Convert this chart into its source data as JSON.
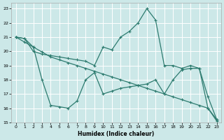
{
  "xlabel": "Humidex (Indice chaleur)",
  "bg_color": "#cce8e8",
  "grid_color": "#ffffff",
  "line_color": "#2d7b6f",
  "xlim": [
    -0.5,
    23.5
  ],
  "ylim": [
    15,
    23.4
  ],
  "yticks": [
    15,
    16,
    17,
    18,
    19,
    20,
    21,
    22,
    23
  ],
  "xticks": [
    0,
    1,
    2,
    3,
    4,
    5,
    6,
    7,
    8,
    9,
    10,
    11,
    12,
    13,
    14,
    15,
    16,
    17,
    18,
    19,
    20,
    21,
    22,
    23
  ],
  "line1_x": [
    0,
    1,
    2,
    3,
    4,
    5,
    6,
    7,
    8,
    9,
    10,
    11,
    12,
    13,
    14,
    15,
    16,
    17,
    18,
    19,
    20,
    21,
    22,
    23
  ],
  "line1_y": [
    21.0,
    20.65,
    20.3,
    19.95,
    19.6,
    19.4,
    19.2,
    19.0,
    18.8,
    18.6,
    18.4,
    18.2,
    18.0,
    17.8,
    17.6,
    17.4,
    17.2,
    17.0,
    16.8,
    16.6,
    16.4,
    16.2,
    16.0,
    15.2
  ],
  "line2_x": [
    0,
    1,
    2,
    3,
    4,
    5,
    6,
    7,
    8,
    9,
    10,
    11,
    12,
    13,
    14,
    15,
    16,
    17,
    18,
    19,
    20,
    21,
    22,
    23
  ],
  "line2_y": [
    21.0,
    20.9,
    20.0,
    19.8,
    19.7,
    19.6,
    19.5,
    19.4,
    19.3,
    19.0,
    20.3,
    20.1,
    21.0,
    21.4,
    22.0,
    23.0,
    22.2,
    19.0,
    19.0,
    18.8,
    19.0,
    18.8,
    16.0,
    15.1
  ],
  "line3_x": [
    0,
    1,
    2,
    3,
    4,
    5,
    6,
    7,
    8,
    9,
    10,
    11,
    12,
    13,
    14,
    15,
    16,
    17,
    18,
    19,
    20,
    21,
    22,
    23
  ],
  "line3_y": [
    21.0,
    20.9,
    20.3,
    18.0,
    16.2,
    16.1,
    16.0,
    16.5,
    18.0,
    18.5,
    17.0,
    17.2,
    17.4,
    17.5,
    17.6,
    17.7,
    18.0,
    17.0,
    18.0,
    18.7,
    18.8,
    18.8,
    16.8,
    15.2
  ]
}
